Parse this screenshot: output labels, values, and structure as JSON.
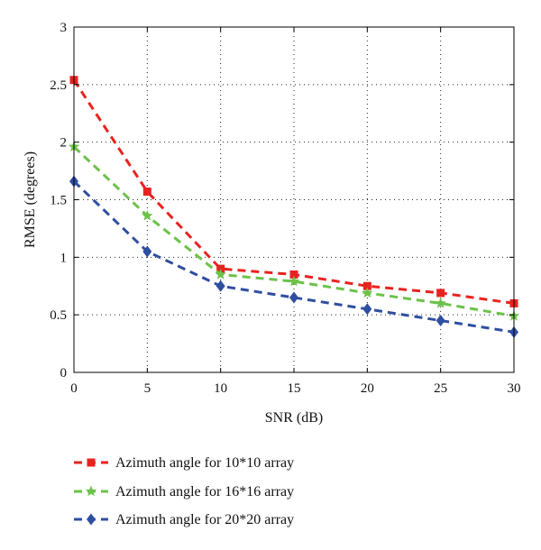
{
  "chart_data": {
    "type": "line",
    "title": "",
    "xlabel": "SNR (dB)",
    "ylabel": "RMSE (degrees)",
    "x": [
      0,
      5,
      10,
      15,
      20,
      25,
      30
    ],
    "xlim": [
      0,
      30
    ],
    "ylim": [
      0,
      3
    ],
    "xticks": [
      0,
      5,
      10,
      15,
      20,
      25,
      30
    ],
    "yticks": [
      0,
      0.5,
      1,
      1.5,
      2,
      2.5,
      3
    ],
    "xtick_labels": [
      "0",
      "5",
      "10",
      "15",
      "20",
      "25",
      "30"
    ],
    "ytick_labels": [
      "0",
      "0.5",
      "1",
      "1.5",
      "2",
      "2.5",
      "3"
    ],
    "grid": true,
    "legend_position": "bottom-outside",
    "series": [
      {
        "name": "Azimuth angle for 10*10 array",
        "values": [
          2.54,
          1.57,
          0.9,
          0.85,
          0.75,
          0.69,
          0.6
        ],
        "color": "#e8231f",
        "marker": "square",
        "line_style": "dashed"
      },
      {
        "name": "Azimuth angle for 16*16 array",
        "values": [
          1.96,
          1.36,
          0.85,
          0.79,
          0.69,
          0.6,
          0.49
        ],
        "color": "#6cc24a",
        "marker": "star",
        "line_style": "dashed"
      },
      {
        "name": "Azimuth angle for 20*20 array",
        "values": [
          1.66,
          1.05,
          0.75,
          0.65,
          0.55,
          0.45,
          0.35
        ],
        "color": "#2e4ea0",
        "marker": "diamond",
        "line_style": "dashed"
      }
    ]
  }
}
